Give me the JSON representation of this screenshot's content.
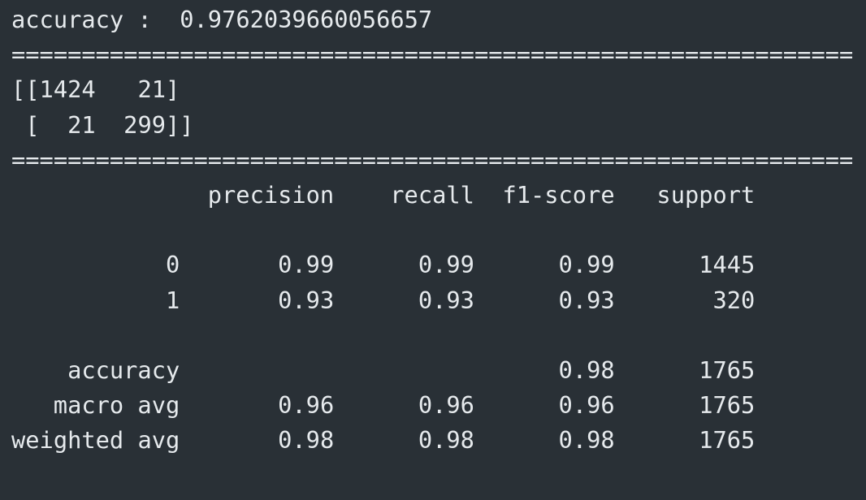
{
  "accuracy": {
    "label": "accuracy :",
    "value": "0.9762039660056657"
  },
  "separator": "============================================================",
  "confusion_matrix": {
    "rows": [
      "[[1424   21]",
      " [  21  299]]"
    ]
  },
  "report": {
    "headers": [
      "precision",
      "recall",
      "f1-score",
      "support"
    ],
    "rows": [
      {
        "label": "0",
        "cells": [
          "0.99",
          "0.99",
          "0.99",
          "1445"
        ]
      },
      {
        "label": "1",
        "cells": [
          "0.93",
          "0.93",
          "0.93",
          "320"
        ]
      },
      null,
      {
        "label": "accuracy",
        "cells": [
          "",
          "",
          "0.98",
          "1765"
        ]
      },
      {
        "label": "macro avg",
        "cells": [
          "0.96",
          "0.96",
          "0.96",
          "1765"
        ]
      },
      {
        "label": "weighted avg",
        "cells": [
          "0.98",
          "0.98",
          "0.98",
          "1765"
        ]
      }
    ]
  }
}
